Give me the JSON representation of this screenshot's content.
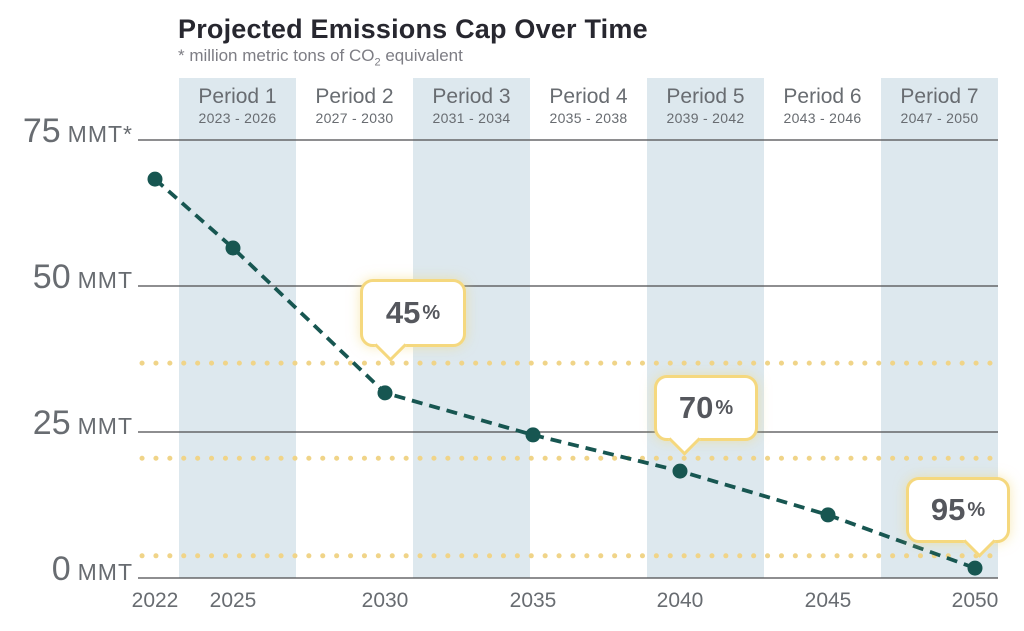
{
  "subtitle": {
    "prefix": "* million metric tons of CO",
    "sub": "2",
    "suffix": " equivalent"
  },
  "colors": {
    "title": "#27272f",
    "subtitle": "#7d7d84",
    "label_gray": "#686c71",
    "band": "#dde8ee",
    "gridline": "#4b4b4d",
    "target_dotted": "#f0d488",
    "line": "#175651",
    "callout_border": "#f5d87e",
    "callout_text": "#55575d"
  },
  "chart_data": {
    "type": "line",
    "title": "Projected Emissions Cap Over Time",
    "subtitle": "* million metric tons of CO2 equivalent",
    "xlabel": "",
    "ylabel": "MMT (million metric tons CO2e)",
    "x": [
      2022,
      2025,
      2030,
      2035,
      2040,
      2045,
      2050
    ],
    "values": [
      68.3,
      56.5,
      31.7,
      24.5,
      18.3,
      10.8,
      1.7
    ],
    "series_name": "Projected emissions cap",
    "line_style": "dashed",
    "marker": "circle",
    "ylim": [
      0,
      75
    ],
    "grid": "horizontal",
    "legend": "none",
    "yticks": [
      {
        "value": 75,
        "num": "75",
        "unit": "MMT*"
      },
      {
        "value": 50,
        "num": "50",
        "unit": "MMT"
      },
      {
        "value": 25,
        "num": "25",
        "unit": "MMT"
      },
      {
        "value": 0,
        "num": "0",
        "unit": "MMT"
      }
    ],
    "xtick_labels": [
      "2022",
      "2025",
      "2030",
      "2035",
      "2040",
      "2045",
      "2050"
    ],
    "periods": [
      {
        "label": "Period 1",
        "years": "2023 - 2026",
        "shaded": true
      },
      {
        "label": "Period 2",
        "years": "2027 - 2030",
        "shaded": false
      },
      {
        "label": "Period 3",
        "years": "2031 - 2034",
        "shaded": true
      },
      {
        "label": "Period 4",
        "years": "2035 - 2038",
        "shaded": false
      },
      {
        "label": "Period 5",
        "years": "2039 - 2042",
        "shaded": true
      },
      {
        "label": "Period 6",
        "years": "2043 - 2046",
        "shaded": false
      },
      {
        "label": "Period 7",
        "years": "2047 - 2050",
        "shaded": true
      }
    ],
    "target_lines": [
      {
        "label_num": "45",
        "label_unit": "%",
        "value": 36.8
      },
      {
        "label_num": "70",
        "label_unit": "%",
        "value": 20.5
      },
      {
        "label_num": "95",
        "label_unit": "%",
        "value": 3.8
      }
    ]
  }
}
